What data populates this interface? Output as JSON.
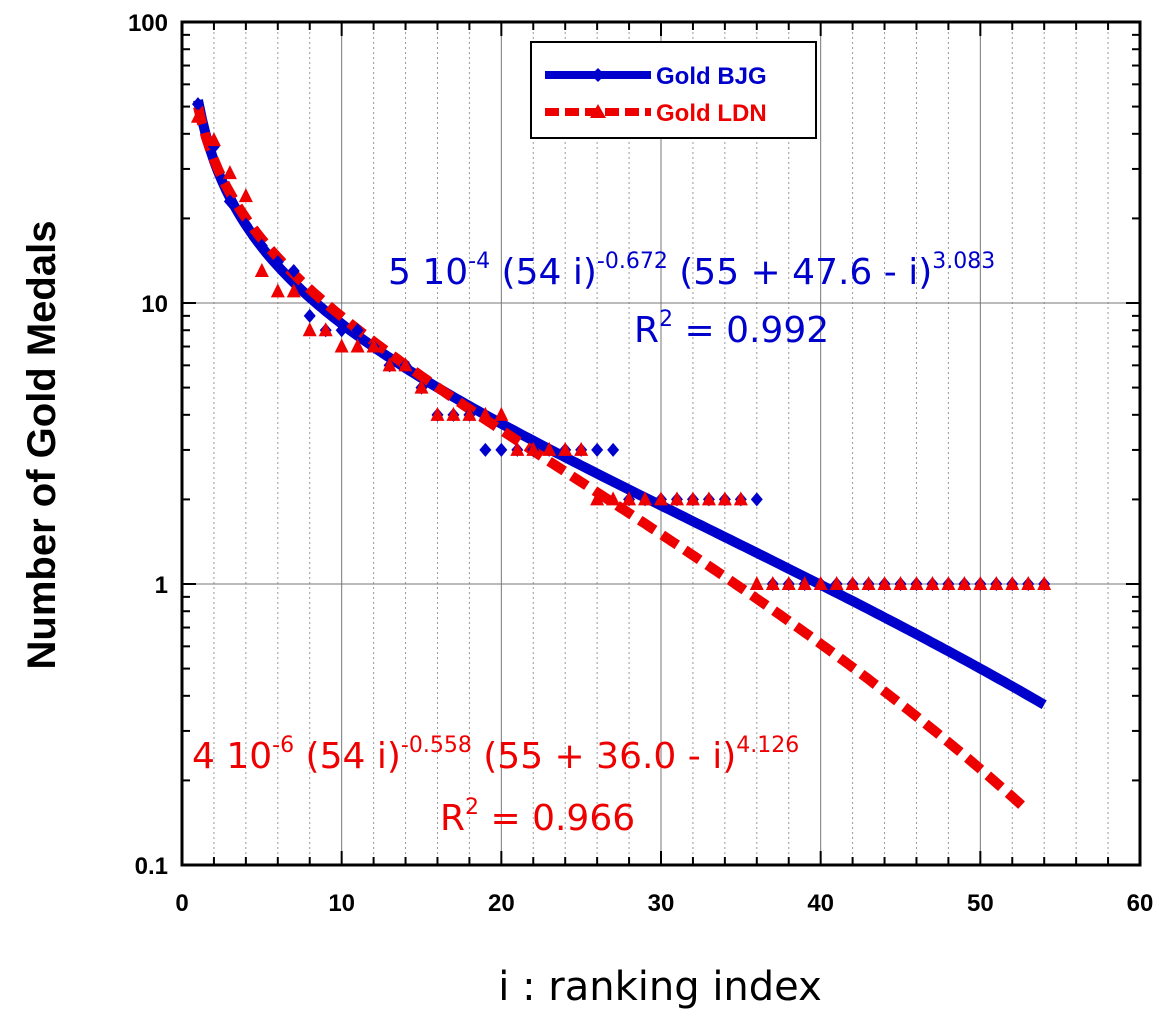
{
  "chart_data": {
    "type": "scatter",
    "title": "",
    "xlabel": "i : ranking index",
    "ylabel": "Number of Gold Medals",
    "xlim": [
      0,
      60
    ],
    "ylim": [
      0.1,
      100
    ],
    "yscale": "log",
    "grid": true,
    "legend_position": "top-center",
    "x_ticks": [
      "0",
      "10",
      "20",
      "30",
      "40",
      "50",
      "60"
    ],
    "y_ticks": [
      "0.1",
      "1",
      "10",
      "100"
    ],
    "series": [
      {
        "name": "Gold BJG",
        "color": "#0000cc",
        "marker": "diamond",
        "x": [
          1,
          2,
          3,
          4,
          5,
          6,
          7,
          8,
          9,
          10,
          11,
          12,
          13,
          14,
          15,
          16,
          17,
          18,
          19,
          20,
          21,
          22,
          23,
          24,
          25,
          26,
          27,
          28,
          29,
          30,
          31,
          32,
          33,
          34,
          35,
          36,
          37,
          38,
          39,
          40,
          41,
          42,
          43,
          44,
          45,
          46,
          47,
          48,
          49,
          50,
          51,
          52,
          53,
          54
        ],
        "y": [
          51,
          36,
          23,
          19,
          16,
          14,
          13,
          9,
          8,
          8,
          8,
          7,
          6,
          6,
          5,
          4,
          4,
          4,
          3,
          3,
          3,
          3,
          3,
          3,
          3,
          3,
          3,
          2,
          2,
          2,
          2,
          2,
          2,
          2,
          2,
          2,
          1,
          1,
          1,
          1,
          1,
          1,
          1,
          1,
          1,
          1,
          1,
          1,
          1,
          1,
          1,
          1,
          1,
          1
        ]
      },
      {
        "name": "Gold LDN",
        "color": "#ee0000",
        "marker": "triangle",
        "x": [
          1,
          2,
          3,
          4,
          5,
          6,
          7,
          8,
          9,
          10,
          11,
          12,
          13,
          14,
          15,
          16,
          17,
          18,
          19,
          20,
          21,
          22,
          23,
          24,
          25,
          26,
          27,
          28,
          29,
          30,
          31,
          32,
          33,
          34,
          35,
          36,
          37,
          38,
          39,
          40,
          41,
          42,
          43,
          44,
          45,
          46,
          47,
          48,
          49,
          50,
          51,
          52,
          53,
          54
        ],
        "y": [
          46,
          38,
          29,
          24,
          13,
          11,
          11,
          8,
          8,
          7,
          7,
          7,
          6,
          6,
          5,
          4,
          4,
          4,
          4,
          4,
          3,
          3,
          3,
          3,
          3,
          2,
          2,
          2,
          2,
          2,
          2,
          2,
          2,
          2,
          2,
          1,
          1,
          1,
          1,
          1,
          1,
          1,
          1,
          1,
          1,
          1,
          1,
          1,
          1,
          1,
          1,
          1,
          1,
          1
        ]
      }
    ],
    "fits": [
      {
        "series": "Gold BJG",
        "color": "#0000cc",
        "style": "solid",
        "A": 0.0005,
        "a": 0.672,
        "b": 3.083,
        "c": 47.6,
        "x_range": [
          1,
          54
        ],
        "formula": {
          "lead": "5 10",
          "lead_exp": "-4",
          "part1": " (54 i)",
          "exp1": "-0.672",
          "part2": " (55 + 47.6 - i)",
          "exp2": "3.083"
        },
        "r2_label": "R",
        "r2_exp": "2",
        "r2_value": " = 0.992"
      },
      {
        "series": "Gold LDN",
        "color": "#ee0000",
        "style": "dashed",
        "A": 4e-06,
        "a": 0.558,
        "b": 4.126,
        "c": 36.0,
        "x_range": [
          1,
          53
        ],
        "formula": {
          "lead": "4 10",
          "lead_exp": "-6",
          "part1": " (54 i)",
          "exp1": "-0.558",
          "part2": " (55 + 36.0 - i)",
          "exp2": "4.126"
        },
        "r2_label": "R",
        "r2_exp": "2",
        "r2_value": " = 0.966"
      }
    ]
  }
}
